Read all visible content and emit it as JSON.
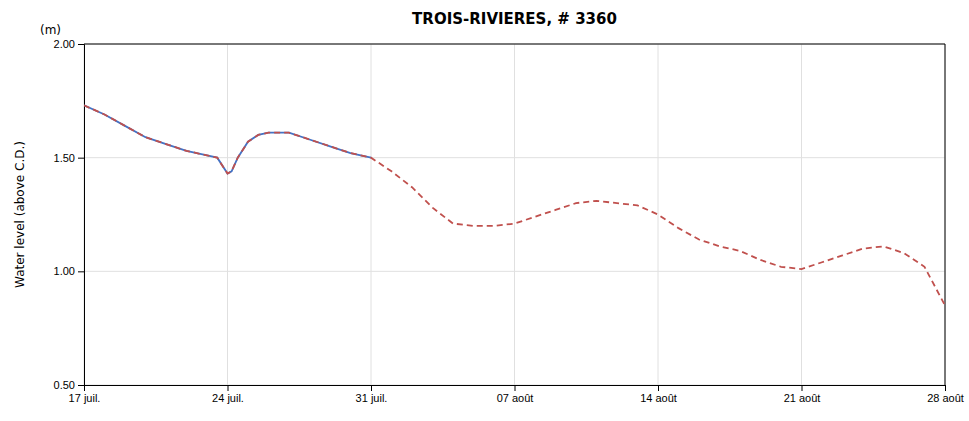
{
  "chart_data": {
    "type": "line",
    "title": "TROIS-RIVIERES, # 3360",
    "y_label": "Water level (above C.D.)",
    "annotations": [
      "(m)"
    ],
    "x": [
      0,
      1,
      2,
      3,
      4,
      5,
      6,
      6.5,
      7,
      7.2,
      7.5,
      8,
      8.5,
      9,
      10,
      11,
      12,
      13,
      14,
      15,
      16,
      17,
      18,
      19,
      20,
      21,
      22,
      23,
      24,
      25,
      26,
      27,
      28,
      29,
      30,
      31,
      32,
      33,
      34,
      35,
      36,
      37,
      38,
      39,
      40,
      41,
      42
    ],
    "series": [
      {
        "color": "#4472c4",
        "line_style": "solid",
        "values": [
          1.73,
          1.69,
          1.64,
          1.59,
          1.56,
          1.53,
          1.51,
          1.5,
          1.43,
          1.44,
          1.5,
          1.57,
          1.6,
          1.61,
          1.61,
          1.58,
          1.55,
          1.52,
          1.5,
          null,
          null,
          null,
          null,
          null,
          null,
          null,
          null,
          null,
          null,
          null,
          null,
          null,
          null,
          null,
          null,
          null,
          null,
          null,
          null,
          null,
          null,
          null,
          null,
          null,
          null,
          null,
          null
        ]
      },
      {
        "color": "#c0504d",
        "line_style": "dashed",
        "values": [
          1.73,
          1.69,
          1.64,
          1.59,
          1.56,
          1.53,
          1.51,
          1.5,
          1.43,
          1.44,
          1.5,
          1.57,
          1.6,
          1.61,
          1.61,
          1.58,
          1.55,
          1.52,
          1.5,
          1.44,
          1.37,
          1.28,
          1.21,
          1.2,
          1.2,
          1.21,
          1.24,
          1.27,
          1.3,
          1.31,
          1.3,
          1.29,
          1.25,
          1.19,
          1.14,
          1.11,
          1.09,
          1.05,
          1.02,
          1.01,
          1.04,
          1.07,
          1.1,
          1.11,
          1.08,
          1.02,
          0.85
        ]
      }
    ],
    "xlim": [
      0,
      42
    ],
    "xticks": [
      {
        "value": 0,
        "label": "17 juil."
      },
      {
        "value": 7,
        "label": "24 juil."
      },
      {
        "value": 14,
        "label": "31 juil."
      },
      {
        "value": 21,
        "label": "07 août"
      },
      {
        "value": 28,
        "label": "14 août"
      },
      {
        "value": 35,
        "label": "21 août"
      },
      {
        "value": 42,
        "label": "28 août"
      }
    ],
    "ylim": [
      0.5,
      2.0
    ],
    "yticks": [
      {
        "value": 0.5,
        "label": "0.50"
      },
      {
        "value": 1.0,
        "label": "1.00"
      },
      {
        "value": 1.5,
        "label": "1.50"
      },
      {
        "value": 2.0,
        "label": "2.00"
      }
    ],
    "grid": true
  }
}
